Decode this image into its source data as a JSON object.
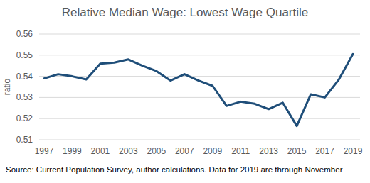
{
  "chart_data": {
    "type": "line",
    "title": "Relative Median Wage: Lowest Wage Quartile",
    "y_label": "ratio",
    "source": "Source: Current Population Survey, author calculations. Data for 2019 are through November",
    "categories": [
      "1997",
      null,
      "1999",
      null,
      "2001",
      null,
      "2003",
      null,
      "2005",
      null,
      "2007",
      null,
      "2009",
      null,
      "2011",
      null,
      "2013",
      null,
      "2015",
      null,
      "2017",
      null,
      "2019"
    ],
    "values": [
      0.539,
      0.541,
      0.54,
      0.5385,
      0.546,
      0.5465,
      0.548,
      0.545,
      0.5425,
      0.538,
      0.541,
      0.538,
      0.5355,
      0.526,
      0.528,
      0.527,
      0.5245,
      0.5275,
      0.5165,
      0.5315,
      0.53,
      0.5385,
      0.5505
    ],
    "color": "#1f4e79",
    "ylim": [
      0.51,
      0.56
    ],
    "yticks": [
      0.51,
      0.52,
      0.53,
      0.54,
      0.55,
      0.56
    ],
    "grid": true
  }
}
